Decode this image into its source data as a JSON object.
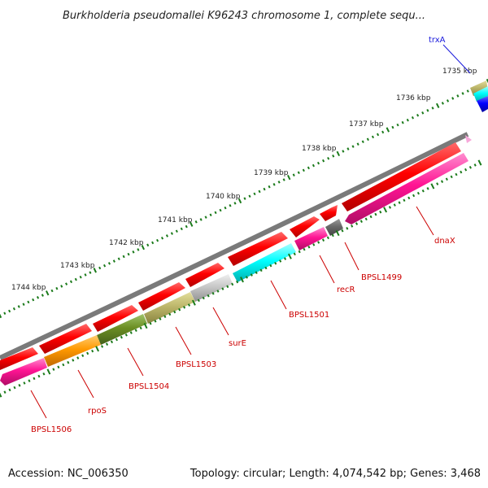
{
  "title": "Burkholderia pseudomallei K96243 chromosome 1, complete sequ...",
  "footer": {
    "accession": "Accession: NC_006350",
    "summary": "Topology: circular; Length: 4,074,542 bp; Genes: 3,468"
  },
  "ticks": [
    "1735 kbp",
    "1736 kbp",
    "1737 kbp",
    "1738 kbp",
    "1739 kbp",
    "1740 kbp",
    "1741 kbp",
    "1742 kbp",
    "1743 kbp",
    "1744 kbp"
  ],
  "genes": [
    {
      "label": "trxA",
      "color": "#1a1adc"
    },
    {
      "label": "dnaX",
      "color": "#cc0000"
    },
    {
      "label": "BPSL1499",
      "color": "#cc0000"
    },
    {
      "label": "recR",
      "color": "#cc0000"
    },
    {
      "label": "BPSL1501",
      "color": "#cc0000"
    },
    {
      "label": "surE",
      "color": "#cc0000"
    },
    {
      "label": "BPSL1503",
      "color": "#cc0000"
    },
    {
      "label": "BPSL1504",
      "color": "#cc0000"
    },
    {
      "label": "rpoS",
      "color": "#cc0000"
    },
    {
      "label": "BPSL1506",
      "color": "#cc0000"
    }
  ],
  "colors": {
    "backbone": "#7a7a7a",
    "cds": "#ee0000",
    "ticks_minor": "#1a7a1a",
    "ticks_major": "#1a7a1a"
  }
}
